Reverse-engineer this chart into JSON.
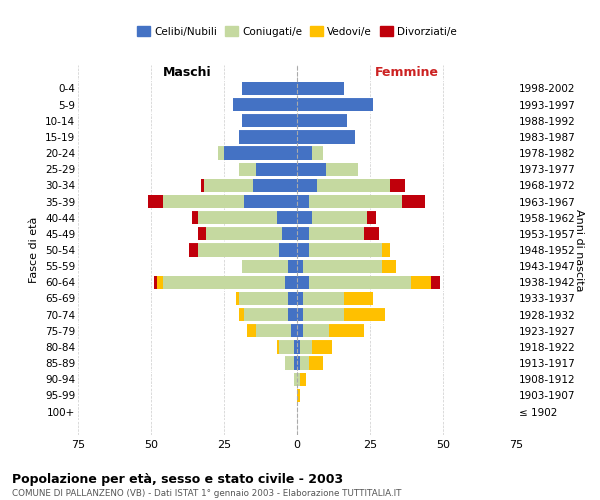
{
  "age_groups": [
    "100+",
    "95-99",
    "90-94",
    "85-89",
    "80-84",
    "75-79",
    "70-74",
    "65-69",
    "60-64",
    "55-59",
    "50-54",
    "45-49",
    "40-44",
    "35-39",
    "30-34",
    "25-29",
    "20-24",
    "15-19",
    "10-14",
    "5-9",
    "0-4"
  ],
  "birth_years": [
    "≤ 1902",
    "1903-1907",
    "1908-1912",
    "1913-1917",
    "1918-1922",
    "1923-1927",
    "1928-1932",
    "1933-1937",
    "1938-1942",
    "1943-1947",
    "1948-1952",
    "1953-1957",
    "1958-1962",
    "1963-1967",
    "1968-1972",
    "1973-1977",
    "1978-1982",
    "1983-1987",
    "1988-1992",
    "1993-1997",
    "1998-2002"
  ],
  "maschi": {
    "celibi": [
      0,
      0,
      0,
      1,
      1,
      2,
      3,
      3,
      4,
      3,
      6,
      5,
      7,
      18,
      15,
      14,
      25,
      20,
      19,
      22,
      19
    ],
    "coniugati": [
      0,
      0,
      1,
      3,
      5,
      12,
      15,
      17,
      42,
      16,
      28,
      26,
      27,
      28,
      17,
      6,
      2,
      0,
      0,
      0,
      0
    ],
    "vedovi": [
      0,
      0,
      0,
      0,
      1,
      3,
      2,
      1,
      2,
      0,
      0,
      0,
      0,
      0,
      0,
      0,
      0,
      0,
      0,
      0,
      0
    ],
    "divorziati": [
      0,
      0,
      0,
      0,
      0,
      0,
      0,
      0,
      1,
      0,
      3,
      3,
      2,
      5,
      1,
      0,
      0,
      0,
      0,
      0,
      0
    ]
  },
  "femmine": {
    "nubili": [
      0,
      0,
      0,
      1,
      1,
      2,
      2,
      2,
      4,
      2,
      4,
      4,
      5,
      4,
      7,
      10,
      5,
      20,
      17,
      26,
      16
    ],
    "coniugate": [
      0,
      0,
      1,
      3,
      4,
      9,
      14,
      14,
      35,
      27,
      25,
      19,
      19,
      32,
      25,
      11,
      4,
      0,
      0,
      0,
      0
    ],
    "vedove": [
      0,
      1,
      2,
      5,
      7,
      12,
      14,
      10,
      7,
      5,
      3,
      0,
      0,
      0,
      0,
      0,
      0,
      0,
      0,
      0,
      0
    ],
    "divorziate": [
      0,
      0,
      0,
      0,
      0,
      0,
      0,
      0,
      3,
      0,
      0,
      5,
      3,
      8,
      5,
      0,
      0,
      0,
      0,
      0,
      0
    ]
  },
  "colors": {
    "celibi": "#4472c4",
    "coniugati": "#c5d9a0",
    "vedovi": "#ffc000",
    "divorziati": "#c0000b"
  },
  "xlim": 75,
  "title": "Popolazione per età, sesso e stato civile - 2003",
  "subtitle": "COMUNE DI PALLANZENO (VB) - Dati ISTAT 1° gennaio 2003 - Elaborazione TUTTITALIA.IT",
  "ylabel_left": "Fasce di età",
  "ylabel_right": "Anni di nascita",
  "xlabel_left": "Maschi",
  "xlabel_right": "Femmine",
  "legend_labels": [
    "Celibi/Nubili",
    "Coniugati/e",
    "Vedovi/e",
    "Divorziati/e"
  ],
  "background_color": "#ffffff",
  "grid_color": "#cccccc",
  "maschi_label_color": "#000000",
  "femmine_label_color": "#cc2222"
}
